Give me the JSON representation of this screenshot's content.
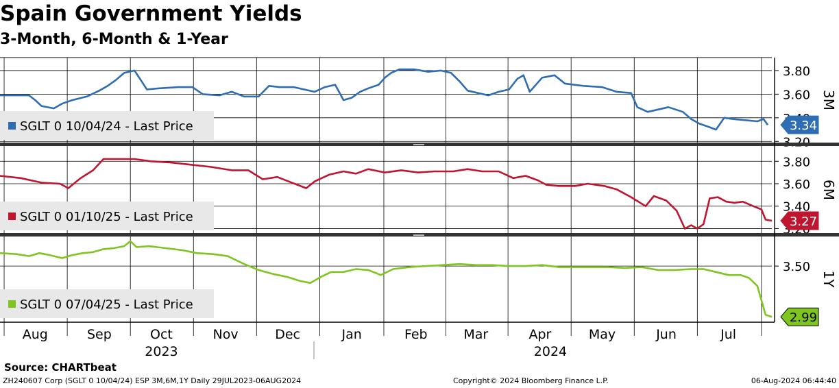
{
  "title": "Spain Government Yields",
  "subtitle": "3-Month, 6-Month & 1-Year",
  "source": "Source: CHARTbeat",
  "footer": {
    "left": "ZH240607 Corp (SGLT 0 10/04/24) ESP 3M,6M,1Y  Daily 29JUL2023-06AUG2024",
    "middle": "Copyright© 2024 Bloomberg Finance L.P.",
    "right": "06-Aug-2024 06:44:40"
  },
  "chart_data": {
    "type": "line",
    "x_range_days": [
      0,
      373
    ],
    "x_months": [
      {
        "label": "Aug",
        "day": 17
      },
      {
        "label": "Sep",
        "day": 48
      },
      {
        "label": "Oct",
        "day": 78
      },
      {
        "label": "Nov",
        "day": 109
      },
      {
        "label": "Dec",
        "day": 139
      },
      {
        "label": "Jan",
        "day": 170
      },
      {
        "label": "Feb",
        "day": 201
      },
      {
        "label": "Mar",
        "day": 230
      },
      {
        "label": "Apr",
        "day": 261
      },
      {
        "label": "May",
        "day": 291
      },
      {
        "label": "Jun",
        "day": 322
      },
      {
        "label": "Jul",
        "day": 352
      }
    ],
    "x_years": [
      {
        "label": "2023",
        "day": 78
      },
      {
        "label": "2024",
        "day": 266
      }
    ],
    "panels": [
      {
        "name": "3M",
        "legend": "SGLT 0 10/04/24 - Last Price",
        "color": "#2e6db3",
        "last_value": 3.34,
        "last_label": "3.34",
        "ylim": [
          3.19,
          3.91
        ],
        "ticks": [
          3.2,
          3.4,
          3.6,
          3.8
        ],
        "tick_labels": [
          "3.20",
          "3.40",
          "3.60",
          "3.80"
        ],
        "points": [
          [
            0,
            3.59
          ],
          [
            14,
            3.59
          ],
          [
            17,
            3.55
          ],
          [
            20,
            3.5
          ],
          [
            26,
            3.48
          ],
          [
            30,
            3.52
          ],
          [
            35,
            3.55
          ],
          [
            42,
            3.58
          ],
          [
            48,
            3.63
          ],
          [
            52,
            3.67
          ],
          [
            56,
            3.72
          ],
          [
            60,
            3.78
          ],
          [
            65,
            3.8
          ],
          [
            68,
            3.72
          ],
          [
            71,
            3.64
          ],
          [
            77,
            3.65
          ],
          [
            86,
            3.66
          ],
          [
            93,
            3.66
          ],
          [
            98,
            3.6
          ],
          [
            106,
            3.59
          ],
          [
            112,
            3.62
          ],
          [
            118,
            3.58
          ],
          [
            125,
            3.58
          ],
          [
            130,
            3.67
          ],
          [
            135,
            3.66
          ],
          [
            142,
            3.66
          ],
          [
            147,
            3.64
          ],
          [
            152,
            3.62
          ],
          [
            157,
            3.66
          ],
          [
            162,
            3.68
          ],
          [
            166,
            3.55
          ],
          [
            170,
            3.57
          ],
          [
            174,
            3.62
          ],
          [
            178,
            3.65
          ],
          [
            183,
            3.68
          ],
          [
            186,
            3.74
          ],
          [
            189,
            3.78
          ],
          [
            193,
            3.81
          ],
          [
            200,
            3.81
          ],
          [
            207,
            3.79
          ],
          [
            213,
            3.8
          ],
          [
            218,
            3.78
          ],
          [
            222,
            3.71
          ],
          [
            226,
            3.63
          ],
          [
            231,
            3.61
          ],
          [
            236,
            3.59
          ],
          [
            241,
            3.62
          ],
          [
            246,
            3.64
          ],
          [
            250,
            3.73
          ],
          [
            253,
            3.76
          ],
          [
            256,
            3.62
          ],
          [
            262,
            3.74
          ],
          [
            268,
            3.76
          ],
          [
            273,
            3.69
          ],
          [
            282,
            3.67
          ],
          [
            291,
            3.66
          ],
          [
            298,
            3.62
          ],
          [
            305,
            3.61
          ],
          [
            308,
            3.49
          ],
          [
            313,
            3.45
          ],
          [
            318,
            3.47
          ],
          [
            323,
            3.49
          ],
          [
            330,
            3.45
          ],
          [
            334,
            3.39
          ],
          [
            338,
            3.35
          ],
          [
            343,
            3.32
          ],
          [
            346,
            3.3
          ],
          [
            350,
            3.4
          ],
          [
            354,
            3.39
          ],
          [
            360,
            3.38
          ],
          [
            366,
            3.37
          ],
          [
            369,
            3.39
          ],
          [
            371,
            3.34
          ]
        ]
      },
      {
        "name": "6M",
        "legend": "SGLT 0 01/10/25 - Last Price",
        "color": "#c0152f",
        "last_value": 3.27,
        "last_label": "3.27",
        "ylim": [
          3.16,
          3.93
        ],
        "ticks": [
          3.2,
          3.4,
          3.6,
          3.8
        ],
        "tick_labels": [
          "3.20",
          "3.40",
          "3.60",
          "3.80"
        ],
        "points": [
          [
            0,
            3.67
          ],
          [
            10,
            3.65
          ],
          [
            20,
            3.61
          ],
          [
            29,
            3.6
          ],
          [
            33,
            3.56
          ],
          [
            39,
            3.65
          ],
          [
            45,
            3.72
          ],
          [
            50,
            3.82
          ],
          [
            57,
            3.82
          ],
          [
            65,
            3.82
          ],
          [
            73,
            3.8
          ],
          [
            82,
            3.79
          ],
          [
            92,
            3.77
          ],
          [
            102,
            3.75
          ],
          [
            112,
            3.72
          ],
          [
            120,
            3.72
          ],
          [
            127,
            3.64
          ],
          [
            134,
            3.66
          ],
          [
            141,
            3.61
          ],
          [
            148,
            3.56
          ],
          [
            152,
            3.62
          ],
          [
            159,
            3.68
          ],
          [
            166,
            3.71
          ],
          [
            172,
            3.69
          ],
          [
            178,
            3.73
          ],
          [
            186,
            3.7
          ],
          [
            194,
            3.72
          ],
          [
            202,
            3.7
          ],
          [
            210,
            3.71
          ],
          [
            219,
            3.71
          ],
          [
            226,
            3.73
          ],
          [
            233,
            3.71
          ],
          [
            241,
            3.71
          ],
          [
            248,
            3.65
          ],
          [
            254,
            3.67
          ],
          [
            260,
            3.63
          ],
          [
            264,
            3.59
          ],
          [
            270,
            3.58
          ],
          [
            278,
            3.58
          ],
          [
            284,
            3.6
          ],
          [
            292,
            3.58
          ],
          [
            298,
            3.55
          ],
          [
            305,
            3.48
          ],
          [
            312,
            3.4
          ],
          [
            316,
            3.49
          ],
          [
            322,
            3.45
          ],
          [
            327,
            3.36
          ],
          [
            331,
            3.2
          ],
          [
            334,
            3.23
          ],
          [
            337,
            3.2
          ],
          [
            340,
            3.24
          ],
          [
            343,
            3.47
          ],
          [
            347,
            3.48
          ],
          [
            351,
            3.44
          ],
          [
            355,
            3.43
          ],
          [
            359,
            3.44
          ],
          [
            364,
            3.4
          ],
          [
            368,
            3.37
          ],
          [
            370,
            3.28
          ],
          [
            373,
            3.27
          ]
        ]
      },
      {
        "name": "1Y",
        "legend": "SGLT 0 07/04/25 - Last Price",
        "color": "#7ec51f",
        "last_value": 2.99,
        "last_label": "2.99",
        "ylim": [
          2.95,
          3.79
        ],
        "ticks": [
          3.5
        ],
        "tick_labels": [
          "3.50"
        ],
        "points": [
          [
            0,
            3.63
          ],
          [
            8,
            3.62
          ],
          [
            14,
            3.6
          ],
          [
            19,
            3.63
          ],
          [
            24,
            3.61
          ],
          [
            30,
            3.58
          ],
          [
            35,
            3.61
          ],
          [
            40,
            3.63
          ],
          [
            45,
            3.64
          ],
          [
            50,
            3.67
          ],
          [
            55,
            3.68
          ],
          [
            60,
            3.7
          ],
          [
            63,
            3.75
          ],
          [
            66,
            3.69
          ],
          [
            72,
            3.7
          ],
          [
            80,
            3.68
          ],
          [
            88,
            3.66
          ],
          [
            95,
            3.63
          ],
          [
            103,
            3.62
          ],
          [
            110,
            3.6
          ],
          [
            118,
            3.52
          ],
          [
            125,
            3.46
          ],
          [
            132,
            3.42
          ],
          [
            139,
            3.39
          ],
          [
            145,
            3.35
          ],
          [
            150,
            3.33
          ],
          [
            155,
            3.39
          ],
          [
            160,
            3.44
          ],
          [
            166,
            3.44
          ],
          [
            172,
            3.47
          ],
          [
            178,
            3.46
          ],
          [
            184,
            3.41
          ],
          [
            190,
            3.47
          ],
          [
            198,
            3.49
          ],
          [
            206,
            3.5
          ],
          [
            214,
            3.51
          ],
          [
            222,
            3.52
          ],
          [
            230,
            3.51
          ],
          [
            238,
            3.51
          ],
          [
            246,
            3.5
          ],
          [
            254,
            3.5
          ],
          [
            262,
            3.51
          ],
          [
            270,
            3.49
          ],
          [
            278,
            3.49
          ],
          [
            286,
            3.49
          ],
          [
            294,
            3.49
          ],
          [
            302,
            3.48
          ],
          [
            310,
            3.49
          ],
          [
            318,
            3.46
          ],
          [
            326,
            3.46
          ],
          [
            334,
            3.47
          ],
          [
            340,
            3.47
          ],
          [
            346,
            3.44
          ],
          [
            352,
            3.41
          ],
          [
            358,
            3.41
          ],
          [
            362,
            3.38
          ],
          [
            366,
            3.3
          ],
          [
            370,
            3.01
          ],
          [
            373,
            2.99
          ]
        ]
      }
    ]
  }
}
